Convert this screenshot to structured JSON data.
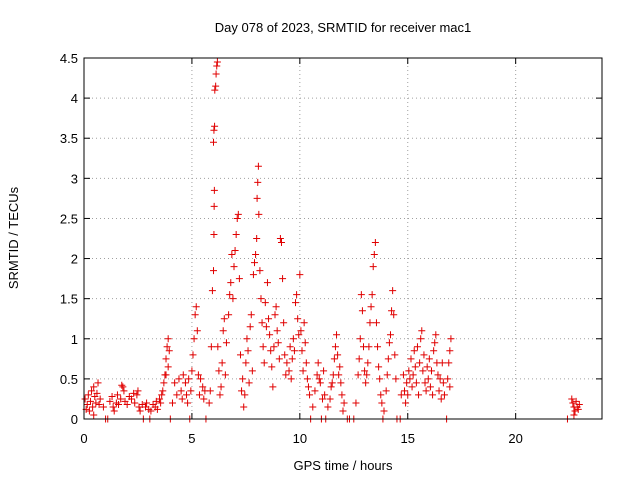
{
  "chart_data": {
    "type": "scatter",
    "title": "Day 078 of 2023, SRMTID for receiver mac1",
    "xlabel": "GPS time / hours",
    "ylabel": "SRMTID / TECUs",
    "xlim": [
      0,
      24
    ],
    "ylim": [
      0,
      4.5
    ],
    "xticks": [
      "0",
      "5",
      "10",
      "15",
      "20"
    ],
    "yticks": [
      "0",
      "0.5",
      "1",
      "1.5",
      "2",
      "2.5",
      "3",
      "3.5",
      "4",
      "4.5"
    ],
    "marker": "plus",
    "series_color": "#e00000",
    "grid": true,
    "series": [
      {
        "name": "SRMTID",
        "points": [
          [
            0.05,
            0.25
          ],
          [
            0.15,
            0.18
          ],
          [
            0.2,
            0.3
          ],
          [
            0.3,
            0.22
          ],
          [
            0.35,
            0.35
          ],
          [
            0.4,
            0.15
          ],
          [
            0.45,
            0.4
          ],
          [
            0.5,
            0.28
          ],
          [
            0.55,
            0.2
          ],
          [
            0.6,
            0.32
          ],
          [
            0.65,
            0.45
          ],
          [
            0.1,
            0.12
          ],
          [
            0.25,
            0.1
          ],
          [
            0.45,
            0.05
          ],
          [
            0.7,
            0.18
          ],
          [
            0.75,
            0.25
          ],
          [
            0.9,
            0.15
          ],
          [
            1.0,
            0.0
          ],
          [
            1.1,
            0.0
          ],
          [
            1.2,
            0.22
          ],
          [
            1.3,
            0.28
          ],
          [
            1.35,
            0.15
          ],
          [
            1.4,
            0.1
          ],
          [
            1.5,
            0.2
          ],
          [
            1.55,
            0.3
          ],
          [
            1.6,
            0.18
          ],
          [
            1.7,
            0.25
          ],
          [
            1.75,
            0.42
          ],
          [
            1.8,
            0.4
          ],
          [
            1.85,
            0.35
          ],
          [
            1.9,
            0.22
          ],
          [
            2.0,
            0.18
          ],
          [
            2.1,
            0.28
          ],
          [
            2.2,
            0.25
          ],
          [
            2.3,
            0.32
          ],
          [
            2.35,
            0.2
          ],
          [
            2.45,
            0.3
          ],
          [
            2.5,
            0.35
          ],
          [
            2.55,
            0.15
          ],
          [
            2.6,
            0.1
          ],
          [
            2.7,
            0.18
          ],
          [
            2.75,
            0.0
          ],
          [
            2.85,
            0.15
          ],
          [
            2.9,
            0.2
          ],
          [
            3.0,
            0.12
          ],
          [
            3.05,
            0.0
          ],
          [
            3.1,
            0.1
          ],
          [
            3.2,
            0.18
          ],
          [
            3.3,
            0.15
          ],
          [
            3.35,
            0.22
          ],
          [
            3.4,
            0.12
          ],
          [
            3.5,
            0.25
          ],
          [
            3.55,
            0.2
          ],
          [
            3.6,
            0.3
          ],
          [
            3.65,
            0.35
          ],
          [
            3.7,
            0.45
          ],
          [
            3.75,
            0.55
          ],
          [
            3.8,
            0.75
          ],
          [
            3.85,
            0.9
          ],
          [
            3.9,
            1.0
          ],
          [
            3.95,
            0.85
          ],
          [
            3.8,
            0.55
          ],
          [
            3.9,
            0.65
          ],
          [
            4.0,
            0.0
          ],
          [
            4.1,
            0.2
          ],
          [
            4.2,
            0.45
          ],
          [
            4.3,
            0.3
          ],
          [
            4.4,
            0.5
          ],
          [
            4.5,
            0.35
          ],
          [
            4.55,
            0.25
          ],
          [
            4.6,
            0.55
          ],
          [
            4.7,
            0.45
          ],
          [
            4.75,
            0.3
          ],
          [
            4.8,
            0.2
          ],
          [
            4.85,
            0.5
          ],
          [
            4.9,
            0.0
          ],
          [
            4.95,
            0.35
          ],
          [
            5.0,
            0.6
          ],
          [
            5.05,
            0.8
          ],
          [
            5.1,
            1.0
          ],
          [
            5.15,
            1.3
          ],
          [
            5.2,
            1.4
          ],
          [
            5.25,
            1.1
          ],
          [
            5.3,
            0.55
          ],
          [
            5.35,
            0.3
          ],
          [
            5.4,
            0.5
          ],
          [
            5.5,
            0.4
          ],
          [
            5.55,
            0.25
          ],
          [
            5.6,
            0.35
          ],
          [
            5.65,
            0.0
          ],
          [
            5.8,
            0.2
          ],
          [
            5.85,
            0.35
          ],
          [
            5.9,
            0.9
          ],
          [
            5.95,
            1.6
          ],
          [
            6.0,
            1.85
          ],
          [
            6.02,
            2.3
          ],
          [
            6.03,
            2.65
          ],
          [
            6.04,
            2.85
          ],
          [
            6.0,
            3.45
          ],
          [
            6.02,
            3.6
          ],
          [
            6.05,
            3.65
          ],
          [
            6.06,
            4.1
          ],
          [
            6.1,
            4.15
          ],
          [
            6.12,
            4.3
          ],
          [
            6.15,
            4.4
          ],
          [
            6.18,
            4.45
          ],
          [
            6.2,
            0.9
          ],
          [
            6.25,
            0.6
          ],
          [
            6.3,
            0.3
          ],
          [
            6.35,
            0.4
          ],
          [
            6.4,
            0.7
          ],
          [
            6.45,
            1.1
          ],
          [
            6.5,
            1.25
          ],
          [
            6.55,
            0.55
          ],
          [
            6.6,
            0.95
          ],
          [
            6.7,
            1.3
          ],
          [
            6.75,
            1.55
          ],
          [
            6.8,
            1.7
          ],
          [
            6.85,
            2.05
          ],
          [
            6.9,
            1.5
          ],
          [
            6.95,
            1.9
          ],
          [
            7.0,
            2.1
          ],
          [
            7.05,
            2.3
          ],
          [
            7.1,
            2.5
          ],
          [
            7.15,
            2.55
          ],
          [
            7.2,
            1.75
          ],
          [
            7.25,
            0.8
          ],
          [
            7.3,
            0.35
          ],
          [
            7.35,
            0.5
          ],
          [
            7.4,
            0.15
          ],
          [
            7.45,
            0.3
          ],
          [
            7.5,
            0.7
          ],
          [
            7.55,
            1.0
          ],
          [
            7.6,
            0.85
          ],
          [
            7.65,
            0.45
          ],
          [
            7.7,
            1.15
          ],
          [
            7.75,
            1.3
          ],
          [
            7.8,
            0.6
          ],
          [
            7.85,
            1.8
          ],
          [
            7.9,
            1.95
          ],
          [
            7.95,
            2.05
          ],
          [
            8.0,
            2.25
          ],
          [
            8.02,
            2.75
          ],
          [
            8.05,
            2.95
          ],
          [
            8.08,
            3.15
          ],
          [
            8.1,
            2.55
          ],
          [
            8.15,
            1.85
          ],
          [
            8.2,
            1.5
          ],
          [
            8.25,
            1.2
          ],
          [
            8.3,
            0.9
          ],
          [
            8.35,
            0.7
          ],
          [
            8.4,
            1.45
          ],
          [
            8.45,
            1.15
          ],
          [
            8.5,
            1.7
          ],
          [
            8.55,
            1.25
          ],
          [
            8.6,
            1.05
          ],
          [
            8.65,
            0.85
          ],
          [
            8.7,
            0.65
          ],
          [
            8.75,
            0.4
          ],
          [
            8.8,
            0.9
          ],
          [
            8.85,
            1.3
          ],
          [
            8.9,
            1.4
          ],
          [
            8.95,
            1.1
          ],
          [
            9.0,
            0.95
          ],
          [
            9.05,
            0.75
          ],
          [
            9.1,
            2.25
          ],
          [
            9.15,
            2.2
          ],
          [
            9.2,
            1.75
          ],
          [
            9.25,
            1.2
          ],
          [
            9.3,
            0.8
          ],
          [
            9.35,
            0.55
          ],
          [
            9.4,
            0.7
          ],
          [
            9.5,
            0.6
          ],
          [
            9.55,
            0.9
          ],
          [
            9.6,
            0.5
          ],
          [
            9.65,
            0.75
          ],
          [
            9.7,
            1.0
          ],
          [
            9.75,
            0.85
          ],
          [
            9.8,
            1.45
          ],
          [
            9.85,
            1.55
          ],
          [
            9.9,
            1.25
          ],
          [
            9.95,
            1.05
          ],
          [
            10.0,
            1.8
          ],
          [
            10.05,
            1.1
          ],
          [
            10.1,
            0.85
          ],
          [
            10.15,
            0.6
          ],
          [
            10.2,
            1.2
          ],
          [
            10.25,
            0.95
          ],
          [
            10.3,
            0.7
          ],
          [
            10.35,
            0.5
          ],
          [
            10.4,
            0.4
          ],
          [
            10.45,
            0.3
          ],
          [
            10.5,
            0.0
          ],
          [
            10.6,
            0.15
          ],
          [
            10.7,
            0.35
          ],
          [
            10.8,
            0.55
          ],
          [
            10.85,
            0.7
          ],
          [
            10.9,
            0.5
          ],
          [
            10.95,
            0.45
          ],
          [
            11.0,
            0.0
          ],
          [
            11.05,
            0.25
          ],
          [
            11.1,
            0.6
          ],
          [
            11.15,
            0.3
          ],
          [
            11.2,
            0.0
          ],
          [
            11.3,
            0.15
          ],
          [
            11.4,
            0.25
          ],
          [
            11.45,
            0.4
          ],
          [
            11.5,
            0.45
          ],
          [
            11.55,
            0.55
          ],
          [
            11.6,
            0.75
          ],
          [
            11.65,
            0.9
          ],
          [
            11.7,
            1.05
          ],
          [
            11.75,
            0.8
          ],
          [
            11.8,
            0.55
          ],
          [
            11.85,
            0.65
          ],
          [
            11.9,
            0.45
          ],
          [
            11.95,
            0.3
          ],
          [
            12.0,
            0.1
          ],
          [
            12.05,
            0.2
          ],
          [
            12.2,
            0.0
          ],
          [
            12.3,
            0.0
          ],
          [
            12.5,
            0.0
          ],
          [
            12.6,
            0.2
          ],
          [
            12.7,
            0.55
          ],
          [
            12.75,
            0.75
          ],
          [
            12.8,
            1.0
          ],
          [
            12.85,
            1.55
          ],
          [
            12.9,
            1.35
          ],
          [
            12.95,
            0.9
          ],
          [
            13.0,
            0.6
          ],
          [
            13.05,
            0.45
          ],
          [
            13.1,
            0.55
          ],
          [
            13.15,
            0.7
          ],
          [
            13.2,
            0.9
          ],
          [
            13.25,
            1.2
          ],
          [
            13.3,
            1.4
          ],
          [
            13.35,
            1.55
          ],
          [
            13.4,
            1.9
          ],
          [
            13.45,
            2.05
          ],
          [
            13.5,
            2.2
          ],
          [
            13.55,
            1.2
          ],
          [
            13.6,
            0.9
          ],
          [
            13.65,
            0.65
          ],
          [
            13.7,
            0.5
          ],
          [
            13.75,
            0.3
          ],
          [
            13.8,
            0.2
          ],
          [
            13.85,
            0.0
          ],
          [
            13.9,
            0.1
          ],
          [
            14.0,
            0.35
          ],
          [
            14.05,
            0.55
          ],
          [
            14.1,
            0.75
          ],
          [
            14.15,
            0.95
          ],
          [
            14.2,
            1.05
          ],
          [
            14.25,
            1.35
          ],
          [
            14.3,
            1.6
          ],
          [
            14.35,
            1.3
          ],
          [
            14.4,
            0.8
          ],
          [
            14.45,
            0.5
          ],
          [
            14.5,
            0.0
          ],
          [
            14.65,
            0.0
          ],
          [
            14.7,
            0.3
          ],
          [
            14.8,
            0.55
          ],
          [
            14.85,
            0.35
          ],
          [
            14.9,
            0.2
          ],
          [
            14.95,
            0.45
          ],
          [
            15.0,
            0.3
          ],
          [
            15.05,
            0.6
          ],
          [
            15.1,
            0.5
          ],
          [
            15.15,
            0.75
          ],
          [
            15.2,
            0.4
          ],
          [
            15.25,
            0.55
          ],
          [
            15.3,
            0.85
          ],
          [
            15.35,
            0.65
          ],
          [
            15.4,
            0.45
          ],
          [
            15.45,
            0.9
          ],
          [
            15.5,
            0.3
          ],
          [
            15.55,
            0.7
          ],
          [
            15.6,
            1.0
          ],
          [
            15.65,
            1.1
          ],
          [
            15.7,
            0.6
          ],
          [
            15.75,
            0.8
          ],
          [
            15.8,
            0.45
          ],
          [
            15.85,
            0.35
          ],
          [
            15.9,
            0.65
          ],
          [
            15.95,
            0.5
          ],
          [
            16.0,
            0.75
          ],
          [
            16.05,
            0.4
          ],
          [
            16.1,
            0.6
          ],
          [
            16.15,
            0.3
          ],
          [
            16.2,
            0.85
          ],
          [
            16.25,
            0.95
          ],
          [
            16.3,
            1.05
          ],
          [
            16.35,
            0.7
          ],
          [
            16.4,
            0.55
          ],
          [
            16.45,
            0.35
          ],
          [
            16.5,
            0.5
          ],
          [
            16.55,
            0.25
          ],
          [
            16.6,
            0.7
          ],
          [
            16.65,
            0.45
          ],
          [
            16.7,
            0.3
          ],
          [
            16.8,
            0.0
          ],
          [
            16.85,
            0.5
          ],
          [
            16.9,
            0.7
          ],
          [
            16.95,
            0.85
          ],
          [
            17.0,
            1.0
          ],
          [
            16.95,
            0.4
          ],
          [
            22.4,
            0.0
          ],
          [
            22.6,
            0.25
          ],
          [
            22.65,
            0.2
          ],
          [
            22.7,
            0.15
          ],
          [
            22.75,
            0.1
          ],
          [
            22.8,
            0.22
          ],
          [
            22.85,
            0.15
          ],
          [
            22.9,
            0.12
          ],
          [
            22.95,
            0.18
          ],
          [
            22.7,
            0.05
          ]
        ]
      }
    ]
  }
}
